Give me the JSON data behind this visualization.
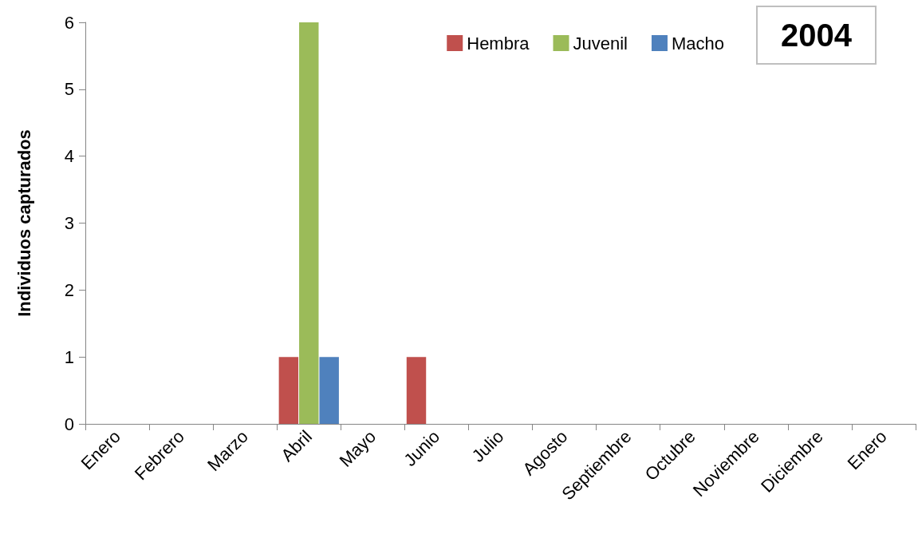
{
  "chart_data": {
    "type": "bar",
    "title": "2004",
    "ylabel": "Individuos capturados",
    "categories": [
      "Enero",
      "Febrero",
      "Marzo",
      "Abril",
      "Mayo",
      "Junio",
      "Julio",
      "Agosto",
      "Septiembre",
      "Octubre",
      "Noviembre",
      "Diciembre",
      "Enero"
    ],
    "series": [
      {
        "name": "Hembra",
        "color": "#c0504d",
        "values": [
          null,
          null,
          null,
          1,
          null,
          1,
          null,
          null,
          null,
          null,
          null,
          null,
          null
        ]
      },
      {
        "name": "Juvenil",
        "color": "#9bbb59",
        "values": [
          null,
          null,
          null,
          6,
          null,
          null,
          null,
          null,
          null,
          null,
          null,
          null,
          null
        ]
      },
      {
        "name": "Macho",
        "color": "#4f81bd",
        "values": [
          null,
          null,
          null,
          1,
          null,
          null,
          null,
          null,
          null,
          null,
          null,
          null,
          null
        ]
      }
    ],
    "ylim": [
      0,
      6
    ],
    "yticks": [
      0,
      1,
      2,
      3,
      4,
      5,
      6
    ],
    "legend": "top right"
  }
}
